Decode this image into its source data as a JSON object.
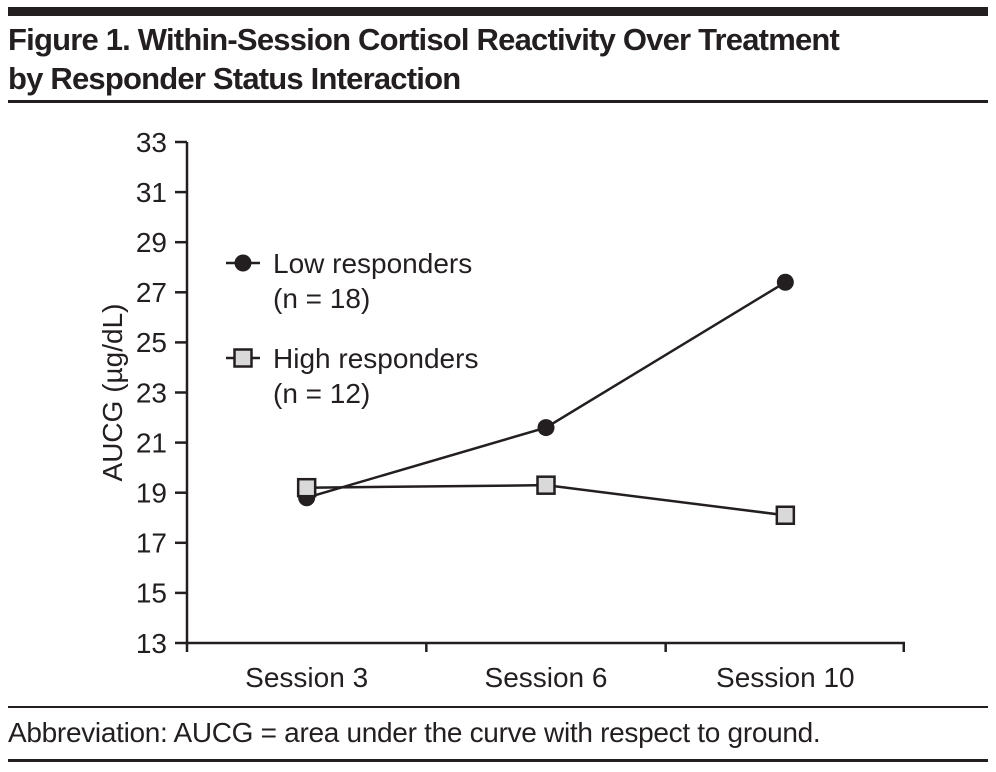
{
  "header": {
    "title_line1": "Figure 1. Within-Session Cortisol Reactivity Over Treatment",
    "title_line2": "by Responder Status Interaction"
  },
  "chart_data": {
    "type": "line",
    "title": "Within-Session Cortisol Reactivity Over Treatment by Responder Status Interaction",
    "categories": [
      "Session 3",
      "Session 6",
      "Session 10"
    ],
    "series": [
      {
        "name": "Low responders",
        "sublabel": "(n = 18)",
        "marker": "circle",
        "marker_fill": "#231f20",
        "values": [
          18.8,
          21.6,
          27.4
        ]
      },
      {
        "name": "High responders",
        "sublabel": "(n = 12)",
        "marker": "square",
        "marker_fill": "#d9d9d9",
        "values": [
          19.2,
          19.3,
          18.1
        ]
      }
    ],
    "xlabel": "",
    "ylabel": "AUCG (µg/dL)",
    "ylim": [
      13,
      33
    ],
    "yticks": [
      13,
      15,
      17,
      19,
      21,
      23,
      25,
      27,
      29,
      31,
      33
    ],
    "grid": false,
    "legend_position": "upper-left-inside",
    "line_color": "#231f20"
  },
  "footer": {
    "abbreviation": "Abbreviation: AUCG = area under the curve with respect to ground."
  },
  "colors": {
    "ink": "#231f20",
    "background": "#ffffff",
    "high_responder_marker_fill": "#d9d9d9"
  }
}
